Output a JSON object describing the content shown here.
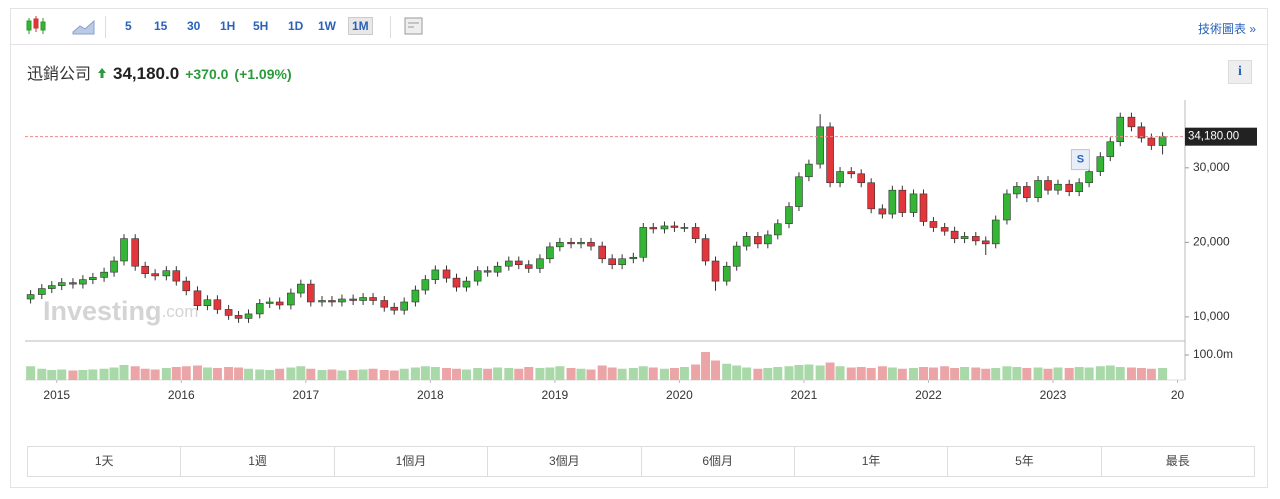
{
  "toolbar": {
    "intervals": [
      "5",
      "15",
      "30",
      "1H",
      "5H",
      "1D",
      "1W",
      "1M"
    ],
    "active": 7,
    "link": "技術圖表 »"
  },
  "header": {
    "name": "迅銷公司",
    "price": "34,180.0",
    "change": "+370.0",
    "change_pct": "(+1.09%)",
    "info": "i"
  },
  "range_buttons": [
    "1天",
    "1週",
    "1個月",
    "3個月",
    "6個月",
    "1年",
    "5年",
    "最長"
  ],
  "chart_data": {
    "type": "candlestick",
    "x": [
      2014.79,
      2014.88,
      2014.96,
      2015.04,
      2015.13,
      2015.21,
      2015.29,
      2015.38,
      2015.46,
      2015.54,
      2015.63,
      2015.71,
      2015.79,
      2015.88,
      2015.96,
      2016.04,
      2016.13,
      2016.21,
      2016.29,
      2016.38,
      2016.46,
      2016.54,
      2016.63,
      2016.71,
      2016.79,
      2016.88,
      2016.96,
      2017.04,
      2017.13,
      2017.21,
      2017.29,
      2017.38,
      2017.46,
      2017.54,
      2017.63,
      2017.71,
      2017.79,
      2017.88,
      2017.96,
      2018.04,
      2018.13,
      2018.21,
      2018.29,
      2018.38,
      2018.46,
      2018.54,
      2018.63,
      2018.71,
      2018.79,
      2018.88,
      2018.96,
      2019.04,
      2019.13,
      2019.21,
      2019.29,
      2019.38,
      2019.46,
      2019.54,
      2019.63,
      2019.71,
      2019.79,
      2019.88,
      2019.96,
      2020.04,
      2020.13,
      2020.21,
      2020.29,
      2020.38,
      2020.46,
      2020.54,
      2020.63,
      2020.71,
      2020.79,
      2020.88,
      2020.96,
      2021.04,
      2021.13,
      2021.21,
      2021.29,
      2021.38,
      2021.46,
      2021.54,
      2021.63,
      2021.71,
      2021.79,
      2021.88,
      2021.96,
      2022.04,
      2022.13,
      2022.21,
      2022.29,
      2022.38,
      2022.46,
      2022.54,
      2022.63,
      2022.71,
      2022.79,
      2022.88,
      2022.96,
      2023.04,
      2023.13,
      2023.21,
      2023.29,
      2023.38,
      2023.46,
      2023.54,
      2023.63,
      2023.71,
      2023.79,
      2023.88
    ],
    "open": [
      12400,
      13000,
      13800,
      14200,
      14600,
      14400,
      15000,
      15300,
      16000,
      17500,
      20500,
      16800,
      15800,
      15500,
      16200,
      14800,
      13500,
      11500,
      12300,
      11000,
      10200,
      9800,
      10400,
      11800,
      12000,
      11600,
      13200,
      14400,
      12000,
      12200,
      12000,
      12400,
      12200,
      12600,
      12200,
      11300,
      10900,
      12000,
      13600,
      15000,
      16300,
      15200,
      14000,
      14800,
      16200,
      16000,
      16800,
      17500,
      17000,
      16500,
      17800,
      19400,
      20000,
      19800,
      20000,
      19500,
      17800,
      17000,
      17800,
      18000,
      22000,
      21800,
      22200,
      22000,
      22000,
      20500,
      17500,
      14800,
      16800,
      19500,
      20800,
      19800,
      21000,
      22500,
      24800,
      28800,
      30500,
      35500,
      28000,
      29500,
      29200,
      28000,
      24500,
      23800,
      27000,
      24000,
      26500,
      22800,
      22000,
      21500,
      20500,
      20800,
      20200,
      19800,
      23000,
      26500,
      27500,
      26000,
      28300,
      27000,
      27800,
      26800,
      28000,
      29500,
      31500,
      33500,
      36800,
      35500,
      34000,
      33000
    ],
    "high": [
      13600,
      14400,
      14800,
      15200,
      15200,
      15600,
      15900,
      16600,
      18100,
      21100,
      21100,
      17400,
      16400,
      16800,
      16800,
      15400,
      14100,
      12900,
      12900,
      11600,
      10800,
      11000,
      12400,
      12600,
      12600,
      13800,
      15000,
      15000,
      12800,
      12800,
      13000,
      13000,
      13200,
      13200,
      12800,
      11900,
      12600,
      14200,
      15600,
      16900,
      16900,
      15800,
      15400,
      16800,
      16800,
      17400,
      18100,
      18100,
      17600,
      18400,
      20000,
      20600,
      20600,
      20600,
      20600,
      20100,
      18400,
      18400,
      18600,
      22600,
      22600,
      22800,
      22800,
      22600,
      22600,
      21100,
      18100,
      17400,
      20100,
      21400,
      21400,
      21600,
      23100,
      25400,
      29400,
      31100,
      37200,
      36100,
      30100,
      30100,
      29800,
      28600,
      25100,
      27600,
      27600,
      27100,
      27100,
      23400,
      22600,
      22100,
      21400,
      21400,
      20800,
      23600,
      27100,
      28100,
      28100,
      28900,
      28900,
      28400,
      28400,
      28600,
      30100,
      32100,
      34100,
      37400,
      37400,
      36100,
      34600,
      34780
    ],
    "low": [
      11800,
      12400,
      13200,
      13600,
      13800,
      13800,
      14400,
      14700,
      15400,
      16900,
      16200,
      15200,
      14900,
      14900,
      14200,
      12900,
      10900,
      10900,
      10400,
      9600,
      9200,
      9200,
      9800,
      11200,
      11000,
      11000,
      12600,
      11400,
      11400,
      11400,
      11400,
      11600,
      11600,
      11600,
      10700,
      10300,
      10300,
      11400,
      13000,
      14400,
      14600,
      13400,
      13400,
      14200,
      15400,
      15400,
      16200,
      16400,
      15900,
      15900,
      17200,
      18800,
      19200,
      19200,
      18900,
      17200,
      16400,
      16400,
      17200,
      17400,
      21200,
      21200,
      21400,
      21400,
      19900,
      16900,
      13500,
      14200,
      16200,
      18900,
      19200,
      19200,
      20400,
      21900,
      24200,
      28200,
      29900,
      27400,
      27400,
      28600,
      27400,
      23900,
      23200,
      23200,
      23400,
      23400,
      22200,
      21400,
      20900,
      19900,
      19900,
      19600,
      18300,
      19200,
      22400,
      25900,
      25400,
      25400,
      26400,
      26400,
      26200,
      26200,
      27400,
      28900,
      30900,
      32900,
      34900,
      33400,
      32400,
      31800
    ],
    "close": [
      13000,
      13800,
      14200,
      14600,
      14400,
      15000,
      15300,
      16000,
      17500,
      20500,
      16800,
      15800,
      15500,
      16200,
      14800,
      13500,
      11500,
      12300,
      11000,
      10200,
      9800,
      10400,
      11800,
      12000,
      11600,
      13200,
      14400,
      12000,
      12200,
      12000,
      12400,
      12200,
      12600,
      12200,
      11300,
      10900,
      12000,
      13600,
      15000,
      16300,
      15200,
      14000,
      14800,
      16200,
      16000,
      16800,
      17500,
      17000,
      16500,
      17800,
      19400,
      20000,
      19800,
      20000,
      19500,
      17800,
      17000,
      17800,
      18000,
      22000,
      21800,
      22200,
      22000,
      22000,
      20500,
      17500,
      14800,
      16800,
      19500,
      20800,
      19800,
      21000,
      22500,
      24800,
      28800,
      30500,
      35500,
      28000,
      29500,
      29200,
      28000,
      24500,
      23800,
      27000,
      24000,
      26500,
      22800,
      22000,
      21500,
      20500,
      20800,
      20200,
      19800,
      23000,
      26500,
      27500,
      26000,
      28300,
      27000,
      27800,
      26800,
      28000,
      29500,
      31500,
      33500,
      36800,
      35500,
      34000,
      33000,
      34180
    ],
    "volume": [
      55,
      45,
      40,
      42,
      38,
      40,
      42,
      45,
      50,
      60,
      55,
      45,
      42,
      48,
      52,
      55,
      58,
      50,
      48,
      52,
      50,
      45,
      42,
      40,
      45,
      50,
      55,
      45,
      40,
      42,
      38,
      40,
      42,
      45,
      40,
      38,
      45,
      50,
      55,
      52,
      48,
      45,
      42,
      48,
      45,
      50,
      48,
      45,
      52,
      48,
      50,
      55,
      48,
      45,
      42,
      58,
      50,
      45,
      48,
      55,
      50,
      45,
      48,
      52,
      62,
      112,
      78,
      65,
      58,
      50,
      45,
      48,
      52,
      55,
      60,
      62,
      58,
      70,
      55,
      50,
      52,
      48,
      55,
      50,
      45,
      48,
      52,
      50,
      55,
      48,
      52,
      50,
      45,
      48,
      55,
      52,
      48,
      50,
      45,
      50,
      48,
      52,
      50,
      55,
      58,
      52,
      50,
      48,
      45,
      48
    ],
    "up_color": "#35b535",
    "down_color": "#e2363c",
    "up_volume_color": "#a9d8a9",
    "down_volume_color": "#eba5a7",
    "xlim": [
      2014.745,
      2024.06
    ],
    "xticks": [
      2015,
      2016,
      2017,
      2018,
      2019,
      2020,
      2021,
      2022,
      2023,
      {
        "value": 2024,
        "label": "20"
      }
    ],
    "ylim": [
      6900,
      39100
    ],
    "yticks": [
      {
        "value": 10000,
        "label": "10,000"
      },
      {
        "value": 20000,
        "label": "20,000"
      },
      {
        "value": 30000,
        "label": "30,000"
      }
    ],
    "volume_ylim": [
      0,
      152
    ],
    "volume_yticks": [
      {
        "value": 100,
        "label": "100.0m"
      }
    ],
    "last_price": {
      "value": 34180,
      "label": "34,180.00"
    },
    "annotations": [
      {
        "x": 2023.22,
        "y": 31100,
        "text": "S"
      }
    ],
    "watermark": [
      "Investing",
      ".com"
    ]
  }
}
